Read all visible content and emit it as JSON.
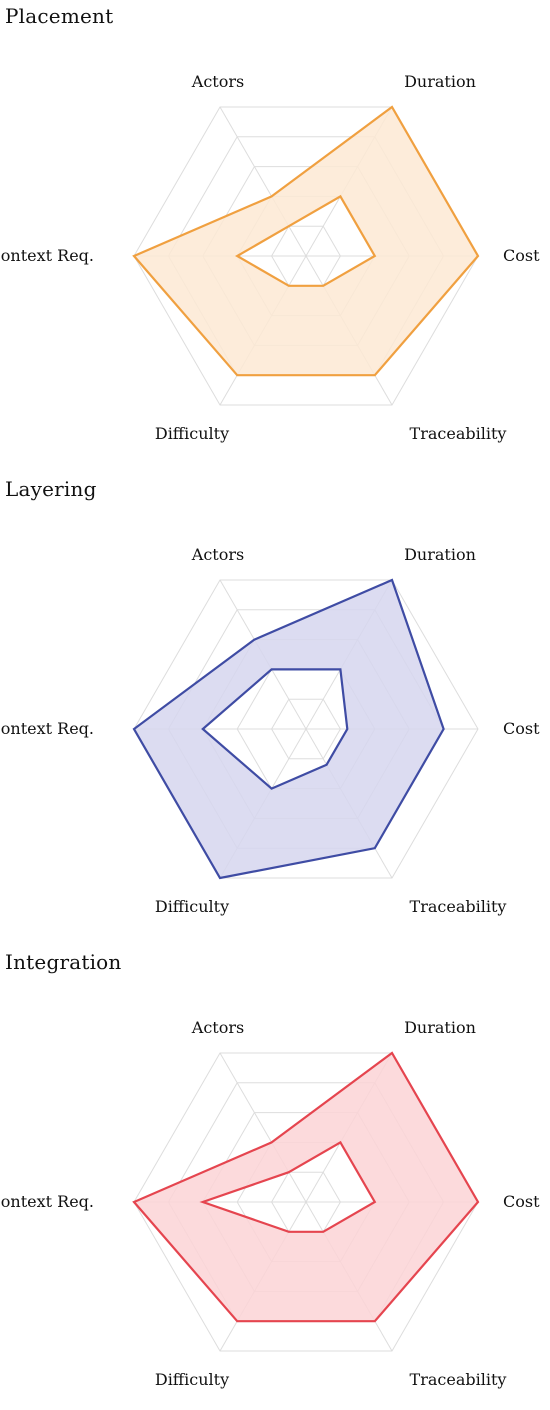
{
  "chart_data": [
    {
      "type": "radar",
      "title": "Placement",
      "axes": [
        "Actors",
        "Duration",
        "Cost",
        "Traceability",
        "Difficulty",
        "Context Req."
      ],
      "range": [
        0,
        5
      ],
      "grid": true,
      "color": "#f0a040",
      "fill": "#fde9d3",
      "series": [
        {
          "role": "outer",
          "values": [
            2,
            5,
            5,
            4,
            4,
            5
          ]
        },
        {
          "role": "inner",
          "values": [
            1,
            2,
            2,
            1,
            1,
            2
          ]
        }
      ]
    },
    {
      "type": "radar",
      "title": "Layering",
      "axes": [
        "Actors",
        "Duration",
        "Cost",
        "Traceability",
        "Difficulty",
        "Context Req."
      ],
      "range": [
        0,
        5
      ],
      "grid": true,
      "color": "#3f4ca4",
      "fill": "#d6d6ee",
      "series": [
        {
          "role": "outer",
          "values": [
            3,
            5,
            4,
            4,
            5,
            5
          ]
        },
        {
          "role": "inner",
          "values": [
            2,
            2,
            1.2,
            1.2,
            2,
            3
          ]
        }
      ]
    },
    {
      "type": "radar",
      "title": "Integration",
      "axes": [
        "Actors",
        "Duration",
        "Cost",
        "Traceability",
        "Difficulty",
        "Context Req."
      ],
      "range": [
        0,
        5
      ],
      "grid": true,
      "color": "#e5454f",
      "fill": "#fbd3d6",
      "series": [
        {
          "role": "outer",
          "values": [
            2,
            5,
            5,
            4,
            4,
            5
          ]
        },
        {
          "role": "inner",
          "values": [
            1,
            2,
            2,
            1,
            1,
            3
          ]
        }
      ]
    }
  ]
}
